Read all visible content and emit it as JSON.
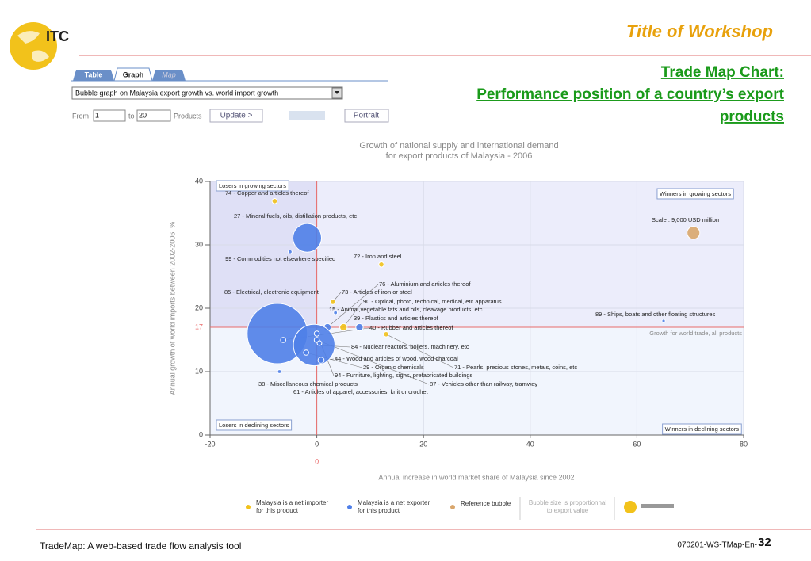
{
  "slide": {
    "logo": "ITC",
    "workshop_title": "Title of Workshop",
    "headings": [
      "Trade Map Chart:",
      "Performance position of a country’s export",
      "products"
    ],
    "footer_left": "TradeMap: A web-based trade flow analysis tool",
    "footer_code": "070201-WS-TMap-En-",
    "page_number": "32"
  },
  "toolbar": {
    "tabs": [
      "Table",
      "Graph",
      "Map"
    ],
    "dropdown": "Bubble graph on Malaysia export growth vs. world import growth",
    "from_label": "From",
    "from_value": "1",
    "to_label": "to",
    "to_value": "20",
    "products_label": "Products",
    "update_button": "Update >",
    "portrait_button": "Portrait"
  },
  "chart_data": {
    "type": "bubble",
    "title": [
      "Growth of national supply and international demand",
      "for export products of Malaysia - 2006"
    ],
    "xlabel": "Annual increase in world market share of Malaysia since 2002",
    "ylabel": "Annual growth of world imports between 2002-2006, %",
    "xlim": [
      -20,
      80
    ],
    "xticks": [
      -20,
      0,
      20,
      40,
      60,
      80
    ],
    "ylim": [
      0,
      40
    ],
    "yticks": [
      0,
      10,
      20,
      30,
      40
    ],
    "ref_lines": {
      "x": 0,
      "y": 17
    },
    "ref_note": "Growth for world trade, all products",
    "quadrants": [
      "Losers in growing sectors",
      "Winners in growing sectors",
      "Losers in declining sectors",
      "Winners in declining sectors"
    ],
    "size_note": [
      "Bubble size is proportionnal",
      "to export value"
    ],
    "series": [
      {
        "name": [
          "Malaysia is a net importer",
          "for this product"
        ],
        "color": "#f2c21b",
        "labels": [
          "74 - Copper and articles thereof",
          "72 - Iron and steel",
          "73 - Articles of iron or steel",
          "90 - Optical, photo, technical, medical, etc apparatus",
          "71 - Pearls, precious stones, metals, coins, etc"
        ],
        "x": [
          -7.9,
          12.1,
          3,
          5,
          13
        ],
        "values": [
          36.9,
          26.9,
          21,
          17,
          15.9
        ],
        "sizes": [
          1500,
          1500,
          1500,
          3000,
          1500
        ]
      },
      {
        "name": [
          "Malaysia is a net exporter",
          "for this product"
        ],
        "color": "#4f7fe8",
        "labels": [
          "27 - Mineral fuels, oils, distillation products, etc",
          "99 - Commodities not elsewhere specified",
          "85 - Electrical, electronic equipment",
          "76 - Aluminium and articles thereof",
          "39 - Plastics and articles thereof",
          "40 - Rubber and articles thereof",
          "84 - Nuclear reactors, boilers, machinery, etc",
          "44 - Wood and articles of wood, wood charcoal",
          "29 - Organic chemicals",
          "94 - Furniture, lighting, signs, prefabricated buildings",
          "87 - Vehicles other than railway, tramway",
          "38 - Miscellaneous chemical products",
          "61 - Articles of apparel, accessories, knit or crochet",
          "15 - Animal,vegetable fats and oils, cleavage products, etc",
          "89 - Ships, boats and other floating structures"
        ],
        "x": [
          -1.8,
          -5,
          -7.4,
          2,
          8,
          -6.3,
          -0.5,
          0.8,
          -2,
          0,
          0,
          -7,
          0.5,
          3.5,
          65
        ],
        "values": [
          31.1,
          28.9,
          16,
          17,
          17,
          15,
          14.2,
          11.8,
          13,
          16,
          15,
          10,
          14.5,
          19.3,
          18
        ],
        "sizes": [
          45000,
          800,
          200000,
          3000,
          3000,
          1500,
          95000,
          2000,
          1500,
          1500,
          1500,
          800,
          1200,
          800,
          600
        ]
      },
      {
        "name": [
          "Reference bubble"
        ],
        "color": "#d9a66c",
        "labels": [
          "Scale : 9,000 USD million"
        ],
        "x": [
          70.6
        ],
        "values": [
          31.9
        ],
        "sizes": [
          9000
        ]
      }
    ]
  }
}
